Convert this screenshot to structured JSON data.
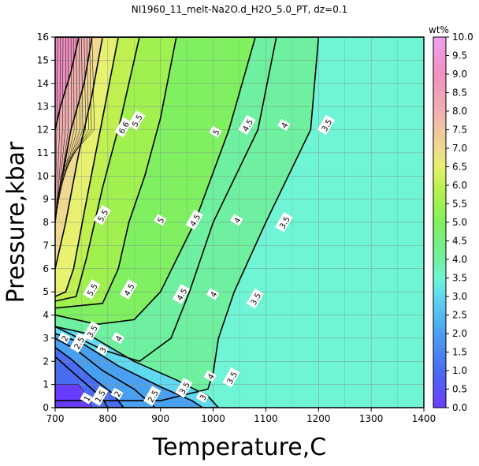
{
  "chart_data": {
    "type": "heatmap",
    "title": "NI1960_11_melt-Na2O.d_H2O_5.0_PT, dz=0.1",
    "xlabel": "Temperature,C",
    "ylabel": "Pressure,kbar",
    "xlim": [
      700,
      1400
    ],
    "ylim": [
      0,
      16
    ],
    "x_ticks": [
      700,
      800,
      900,
      1000,
      1100,
      1200,
      1300,
      1400
    ],
    "y_ticks": [
      0,
      1,
      2,
      3,
      4,
      5,
      6,
      7,
      8,
      9,
      10,
      11,
      12,
      13,
      14,
      15,
      16
    ],
    "grid": true,
    "colorbar": {
      "label": "wt%",
      "range": [
        0.0,
        10.0
      ],
      "ticks": [
        "0.0",
        "0.5",
        "1.0",
        "1.5",
        "2.0",
        "2.5",
        "3.0",
        "3.5",
        "4.0",
        "4.5",
        "5.0",
        "5.5",
        "6.0",
        "6.5",
        "7.0",
        "7.5",
        "8.0",
        "8.5",
        "9.0",
        "9.5",
        "10.0"
      ],
      "stops": [
        {
          "value": 0.0,
          "color": "#6a3cff"
        },
        {
          "value": 1.0,
          "color": "#4a6cf0"
        },
        {
          "value": 2.0,
          "color": "#4aa0f0"
        },
        {
          "value": 3.0,
          "color": "#5fd8f0"
        },
        {
          "value": 3.5,
          "color": "#6ff5d6"
        },
        {
          "value": 4.0,
          "color": "#6ff0a0"
        },
        {
          "value": 5.0,
          "color": "#80f060"
        },
        {
          "value": 5.5,
          "color": "#a0f050"
        },
        {
          "value": 6.0,
          "color": "#c0f050"
        },
        {
          "value": 6.5,
          "color": "#e8f070"
        },
        {
          "value": 7.0,
          "color": "#f0d890"
        },
        {
          "value": 8.0,
          "color": "#f0b0b0"
        },
        {
          "value": 9.0,
          "color": "#f090c0"
        },
        {
          "value": 10.0,
          "color": "#f0a0f0"
        }
      ]
    },
    "contour_labels": [
      {
        "text": "5",
        "x": 1005,
        "y": 11.9
      },
      {
        "text": "4.5",
        "x": 1065,
        "y": 12.2
      },
      {
        "text": "4",
        "x": 1135,
        "y": 12.2
      },
      {
        "text": "3.5",
        "x": 1215,
        "y": 12.2
      },
      {
        "text": "5.5",
        "x": 855,
        "y": 12.4
      },
      {
        "text": "6.6",
        "x": 830,
        "y": 12.1
      },
      {
        "text": "5",
        "x": 900,
        "y": 8.1
      },
      {
        "text": "4.5",
        "x": 965,
        "y": 8.1
      },
      {
        "text": "4",
        "x": 1045,
        "y": 8.1
      },
      {
        "text": "3.5",
        "x": 1135,
        "y": 8.0
      },
      {
        "text": "5.5",
        "x": 790,
        "y": 8.3
      },
      {
        "text": "5.5",
        "x": 770,
        "y": 5.1
      },
      {
        "text": "4.5",
        "x": 840,
        "y": 5.1
      },
      {
        "text": "4.5",
        "x": 940,
        "y": 4.9
      },
      {
        "text": "4",
        "x": 1000,
        "y": 4.9
      },
      {
        "text": "3.5",
        "x": 1080,
        "y": 4.7
      },
      {
        "text": "2",
        "x": 718,
        "y": 3.0
      },
      {
        "text": "2.5",
        "x": 745,
        "y": 2.8
      },
      {
        "text": "3",
        "x": 790,
        "y": 2.5
      },
      {
        "text": "3.5",
        "x": 770,
        "y": 3.3
      },
      {
        "text": "4",
        "x": 820,
        "y": 3.0
      },
      {
        "text": "1",
        "x": 760,
        "y": 0.4
      },
      {
        "text": "1.5",
        "x": 785,
        "y": 0.5
      },
      {
        "text": "2",
        "x": 818,
        "y": 0.6
      },
      {
        "text": "2.5",
        "x": 885,
        "y": 0.5
      },
      {
        "text": "3.5",
        "x": 945,
        "y": 0.85
      },
      {
        "text": "3",
        "x": 980,
        "y": 0.45
      },
      {
        "text": "4",
        "x": 995,
        "y": 1.35
      },
      {
        "text": "3.5",
        "x": 1035,
        "y": 1.3
      }
    ]
  }
}
